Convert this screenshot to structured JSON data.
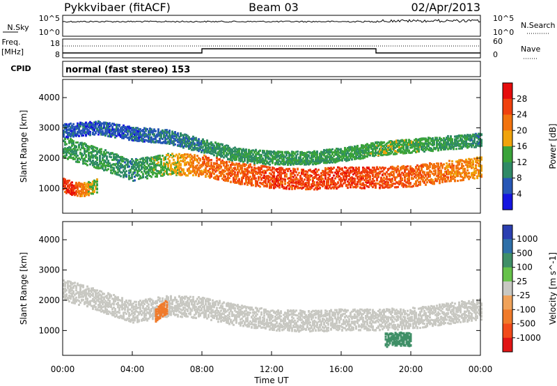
{
  "header": {
    "station": "Pykkvibaer (fitACF)",
    "beam": "Beam 03",
    "date": "02/Apr/2013"
  },
  "strip_labels": {
    "nsky": "N.Sky",
    "nsky_ticks": [
      "10^5",
      "10^0"
    ],
    "freq": "Freq.",
    "freq_unit": "[MHz]",
    "freq_ticks": [
      "18",
      "8"
    ],
    "cpid": "CPID",
    "cpid_text": "normal (fast stereo) 153",
    "nsearch": "N.Search",
    "nsearch_ticks": [
      "10^5",
      "10^0"
    ],
    "nave": "Nave",
    "nave_ticks": [
      "60",
      "0"
    ]
  },
  "colors": {
    "power": [
      "#1515e0",
      "#2757b6",
      "#2f8a66",
      "#3aa33a",
      "#f0a30c",
      "#f2730e",
      "#f0410e",
      "#e60c0c"
    ],
    "velocity": [
      "#2b3fb1",
      "#2e6fa8",
      "#3f8f67",
      "#66c24a",
      "#c8c8c2",
      "#f0a25a",
      "#f07a2a",
      "#f24a1a",
      "#e11515"
    ],
    "ground_scatter": "#c8c8c2"
  },
  "chart_data": [
    {
      "type": "heatmap",
      "panel": "power",
      "xlabel": "",
      "ylabel": "Slant Range [km]",
      "x_ticks": [
        "00:00",
        "04:00",
        "08:00",
        "12:00",
        "16:00",
        "20:00",
        "00:00"
      ],
      "y_ticks": [
        1000,
        2000,
        3000,
        4000
      ],
      "ylim": [
        180,
        4600
      ],
      "xlim_hours": [
        0,
        24
      ],
      "colorbar_label": "Power [dB]",
      "colorbar_ticks": [
        4,
        8,
        12,
        16,
        20,
        24,
        28
      ],
      "bands": [
        {
          "name": "main echo band",
          "t": [
            0,
            2,
            4,
            6,
            8,
            10,
            12,
            14,
            16,
            18,
            20,
            22,
            24
          ],
          "range_km": [
            2350,
            2000,
            1600,
            1800,
            1750,
            1500,
            1350,
            1300,
            1350,
            1350,
            1400,
            1550,
            1700
          ],
          "power_db": [
            12,
            12,
            10,
            16,
            22,
            24,
            26,
            26,
            26,
            26,
            24,
            22,
            20
          ]
        },
        {
          "name": "far range band",
          "t": [
            0,
            2,
            4,
            6,
            8,
            10,
            12,
            14,
            16,
            18,
            20,
            22,
            24
          ],
          "range_km": [
            2900,
            3000,
            2800,
            2700,
            2400,
            2100,
            2000,
            2000,
            2100,
            2300,
            2400,
            2500,
            2600
          ],
          "power_db": [
            6,
            6,
            6,
            8,
            10,
            12,
            12,
            12,
            12,
            14,
            14,
            12,
            10
          ]
        },
        {
          "name": "near range echo",
          "t": [
            0,
            0.5,
            1,
            1.5,
            2
          ],
          "range_km": [
            1100,
            1000,
            950,
            1000,
            1100
          ],
          "power_db": [
            26,
            28,
            22,
            18,
            14
          ]
        }
      ]
    },
    {
      "type": "heatmap",
      "panel": "velocity",
      "xlabel": "Time UT",
      "ylabel": "Slant Range [km]",
      "x_ticks": [
        "00:00",
        "04:00",
        "08:00",
        "12:00",
        "16:00",
        "20:00",
        "00:00"
      ],
      "y_ticks": [
        1000,
        2000,
        3000,
        4000
      ],
      "ylim": [
        180,
        4600
      ],
      "xlim_hours": [
        0,
        24
      ],
      "colorbar_label": "Velocity [m s^-1]",
      "colorbar_ticks": [
        1000,
        500,
        100,
        25,
        -25,
        -100,
        -500,
        -1000
      ],
      "bands": [
        {
          "name": "ground scatter band",
          "t": [
            0,
            2,
            4,
            6,
            8,
            10,
            12,
            14,
            16,
            18,
            20,
            22,
            24
          ],
          "range_km": [
            2350,
            2000,
            1600,
            1800,
            1750,
            1500,
            1350,
            1300,
            1350,
            1350,
            1400,
            1550,
            1700
          ],
          "velocity": [
            0,
            0,
            0,
            0,
            0,
            0,
            0,
            0,
            0,
            0,
            0,
            0,
            0
          ]
        },
        {
          "name": "eastward echo",
          "t": [
            5.3,
            5.6,
            6.0
          ],
          "range_km": [
            1500,
            1650,
            1800
          ],
          "velocity": [
            -200,
            -300,
            -250
          ]
        },
        {
          "name": "positive velocity patch",
          "t": [
            18.5,
            19.0,
            19.5,
            20.0
          ],
          "range_km": [
            680,
            700,
            720,
            700
          ],
          "velocity": [
            150,
            200,
            180,
            120
          ]
        }
      ]
    }
  ]
}
